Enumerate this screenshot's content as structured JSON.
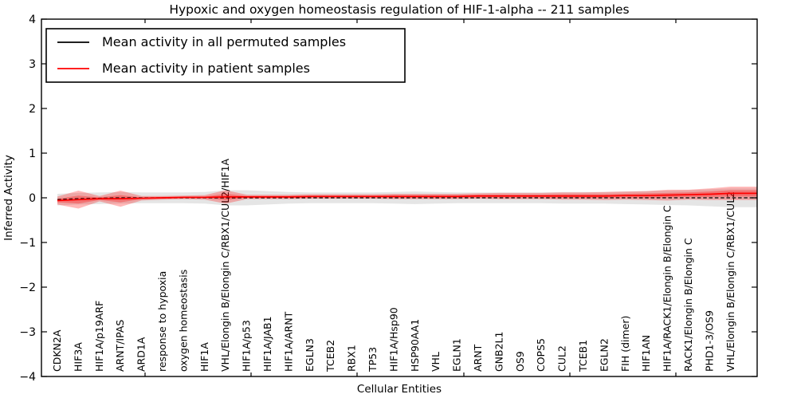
{
  "chart_data": {
    "type": "line",
    "title": "Hypoxic and oxygen homeostasis regulation of HIF-1-alpha -- 211 samples",
    "xlabel": "Cellular Entities",
    "ylabel": "Inferred Activity",
    "ylim": [
      -4,
      4
    ],
    "yticks": [
      4,
      3,
      2,
      1,
      0,
      -1,
      -2,
      -3,
      -4
    ],
    "grid": false,
    "legend_position": "upper left",
    "legend": {
      "entries": [
        {
          "label": "Mean activity in all permuted samples",
          "color": "#000000"
        },
        {
          "label": "Mean activity in patient samples",
          "color": "#ff0000"
        }
      ]
    },
    "categories": [
      "CDKN2A",
      "HIF3A",
      "HIF1A/p19ARF",
      "ARNT/IPAS",
      "ARD1A",
      "response to hypoxia",
      "oxygen homeostasis",
      "HIF1A",
      "VHL/Elongin B/Elongin C/RBX1/CUL2/HIF1A",
      "HIF1A/p53",
      "HIF1A/JAB1",
      "HIF1A/ARNT",
      "EGLN3",
      "TCEB2",
      "RBX1",
      "TP53",
      "HIF1A/Hsp90",
      "HSP90AA1",
      "VHL",
      "EGLN1",
      "ARNT",
      "GNB2L1",
      "OS9",
      "COPS5",
      "CUL2",
      "TCEB1",
      "EGLN2",
      "FIH (dimer)",
      "HIF1AN",
      "HIF1A/RACK1/Elongin B/Elongin C",
      "RACK1/Elongin B/Elongin C",
      "PHD1-3/OS9",
      "VHL/Elongin B/Elongin C/RBX1/CUL2"
    ],
    "series": [
      {
        "name": "Mean activity in all permuted samples",
        "color": "#000000",
        "line_style": "dashed",
        "values": [
          -0.04,
          -0.02,
          -0.01,
          0,
          0,
          0,
          0,
          0,
          0,
          0,
          0,
          0,
          0,
          0,
          0,
          0,
          0,
          0,
          0,
          0,
          0,
          0,
          0,
          0,
          0,
          0,
          0,
          0,
          0,
          0,
          0,
          0,
          0
        ]
      },
      {
        "name": "Mean activity in patient samples",
        "color": "#ff0000",
        "line_style": "solid",
        "values": [
          -0.06,
          -0.04,
          -0.02,
          -0.02,
          -0.01,
          0,
          0.01,
          0.01,
          0.02,
          0.02,
          0.02,
          0.02,
          0.03,
          0.03,
          0.03,
          0.03,
          0.03,
          0.03,
          0.03,
          0.03,
          0.04,
          0.04,
          0.04,
          0.04,
          0.04,
          0.04,
          0.04,
          0.05,
          0.05,
          0.06,
          0.07,
          0.08,
          0.1
        ]
      }
    ],
    "bands": [
      {
        "name": "permuted-samples-std-band",
        "series": 0,
        "color": "#000000",
        "opacity": 0.1,
        "half_widths": [
          0.13,
          0.13,
          0.13,
          0.13,
          0.12,
          0.12,
          0.12,
          0.13,
          0.17,
          0.17,
          0.15,
          0.13,
          0.12,
          0.12,
          0.12,
          0.12,
          0.13,
          0.14,
          0.13,
          0.12,
          0.12,
          0.12,
          0.12,
          0.12,
          0.13,
          0.13,
          0.13,
          0.14,
          0.15,
          0.16,
          0.17,
          0.19,
          0.21
        ]
      },
      {
        "name": "patient-samples-std-band",
        "series": 1,
        "color": "#ff0000",
        "opacity": 0.28,
        "half_widths": [
          0.09,
          0.2,
          0.06,
          0.18,
          0.05,
          0.04,
          0.04,
          0.05,
          0.15,
          0.05,
          0.05,
          0.05,
          0.05,
          0.05,
          0.05,
          0.05,
          0.06,
          0.06,
          0.06,
          0.06,
          0.06,
          0.07,
          0.07,
          0.07,
          0.08,
          0.08,
          0.09,
          0.09,
          0.1,
          0.12,
          0.11,
          0.13,
          0.15
        ]
      },
      {
        "name": "patient-samples-inner-band",
        "series": 1,
        "color": "#ff0000",
        "opacity": 0.3,
        "half_widths": [
          0.04,
          0.09,
          0.03,
          0.08,
          0.02,
          0.02,
          0.02,
          0.02,
          0.07,
          0.02,
          0.02,
          0.02,
          0.02,
          0.02,
          0.02,
          0.02,
          0.03,
          0.03,
          0.03,
          0.03,
          0.03,
          0.03,
          0.03,
          0.03,
          0.04,
          0.04,
          0.04,
          0.04,
          0.05,
          0.05,
          0.05,
          0.06,
          0.07
        ]
      }
    ]
  }
}
